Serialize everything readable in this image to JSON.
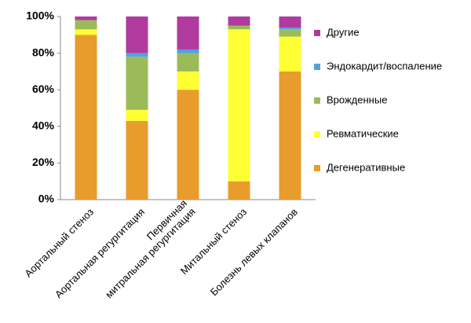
{
  "chart_data": {
    "type": "stacked_bar",
    "categories": [
      "Аортальный стеноз",
      "Аортальная регургитация",
      "Первичная\nмитральная регургитация",
      "Митальный стеноз",
      "Болезнь левых клапанов"
    ],
    "series": [
      {
        "name": "Дегенеративные",
        "color": "#e89c2c",
        "values": [
          90,
          43,
          60,
          10,
          70
        ]
      },
      {
        "name": "Ревматические",
        "color": "#ffff33",
        "values": [
          3,
          6,
          10,
          83,
          19
        ]
      },
      {
        "name": "Врожденные",
        "color": "#9bbb59",
        "values": [
          5,
          29,
          10,
          2,
          4
        ]
      },
      {
        "name": "Эндокардит/воспаление",
        "color": "#4fa3e0",
        "values": [
          0,
          2,
          2,
          0,
          1
        ]
      },
      {
        "name": "Другие",
        "color": "#b03a9e",
        "values": [
          2,
          20,
          18,
          5,
          6
        ]
      }
    ],
    "ylim": [
      0,
      100
    ],
    "yticks": [
      {
        "value": 0,
        "label": "0%"
      },
      {
        "value": 20,
        "label": "20%"
      },
      {
        "value": 40,
        "label": "40%"
      },
      {
        "value": 60,
        "label": "60%"
      },
      {
        "value": 80,
        "label": "80%"
      },
      {
        "value": 100,
        "label": "100%"
      }
    ],
    "grid": false,
    "legend": "right"
  }
}
